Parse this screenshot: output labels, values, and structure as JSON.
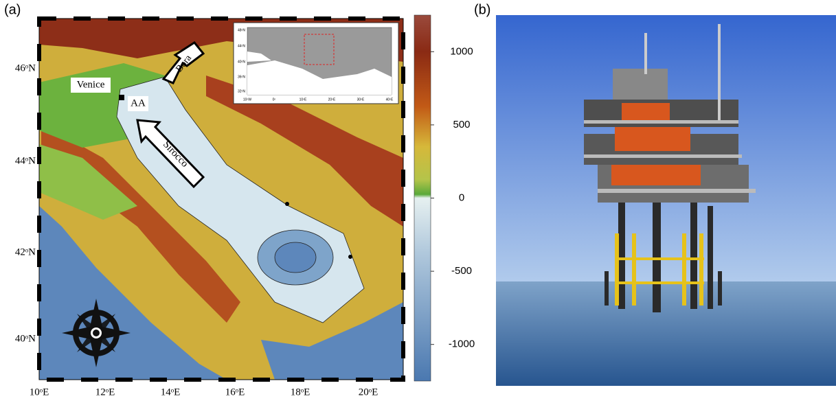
{
  "panels": {
    "a": {
      "label": "(a)",
      "lat_labels": [
        "46ᵒN",
        "44ᵒN",
        "42ᵒN",
        "40ᵒN"
      ],
      "lon_labels": [
        "10ᵒE",
        "12ᵒE",
        "14ᵒE",
        "16ᵒE",
        "18ᵒE",
        "20ᵒE"
      ],
      "places": [
        "Venice",
        "AA"
      ],
      "winds": [
        "Bora",
        "Sirocco"
      ],
      "inset": {
        "lat_labels": [
          "48ᵒN",
          "44ᵒN",
          "40ᵒN",
          "36ᵒN",
          "32ᵒN"
        ],
        "lon_labels": [
          "10ᵒW",
          "0ᵒ",
          "10ᵒE",
          "20ᵒE",
          "30ᵒE",
          "40ᵒE"
        ]
      },
      "colorbar": {
        "lim": [
          -1250,
          1250
        ],
        "ticks": [
          1000,
          500,
          0,
          -500,
          -1000
        ]
      }
    },
    "b": {
      "label": "(b)"
    }
  }
}
